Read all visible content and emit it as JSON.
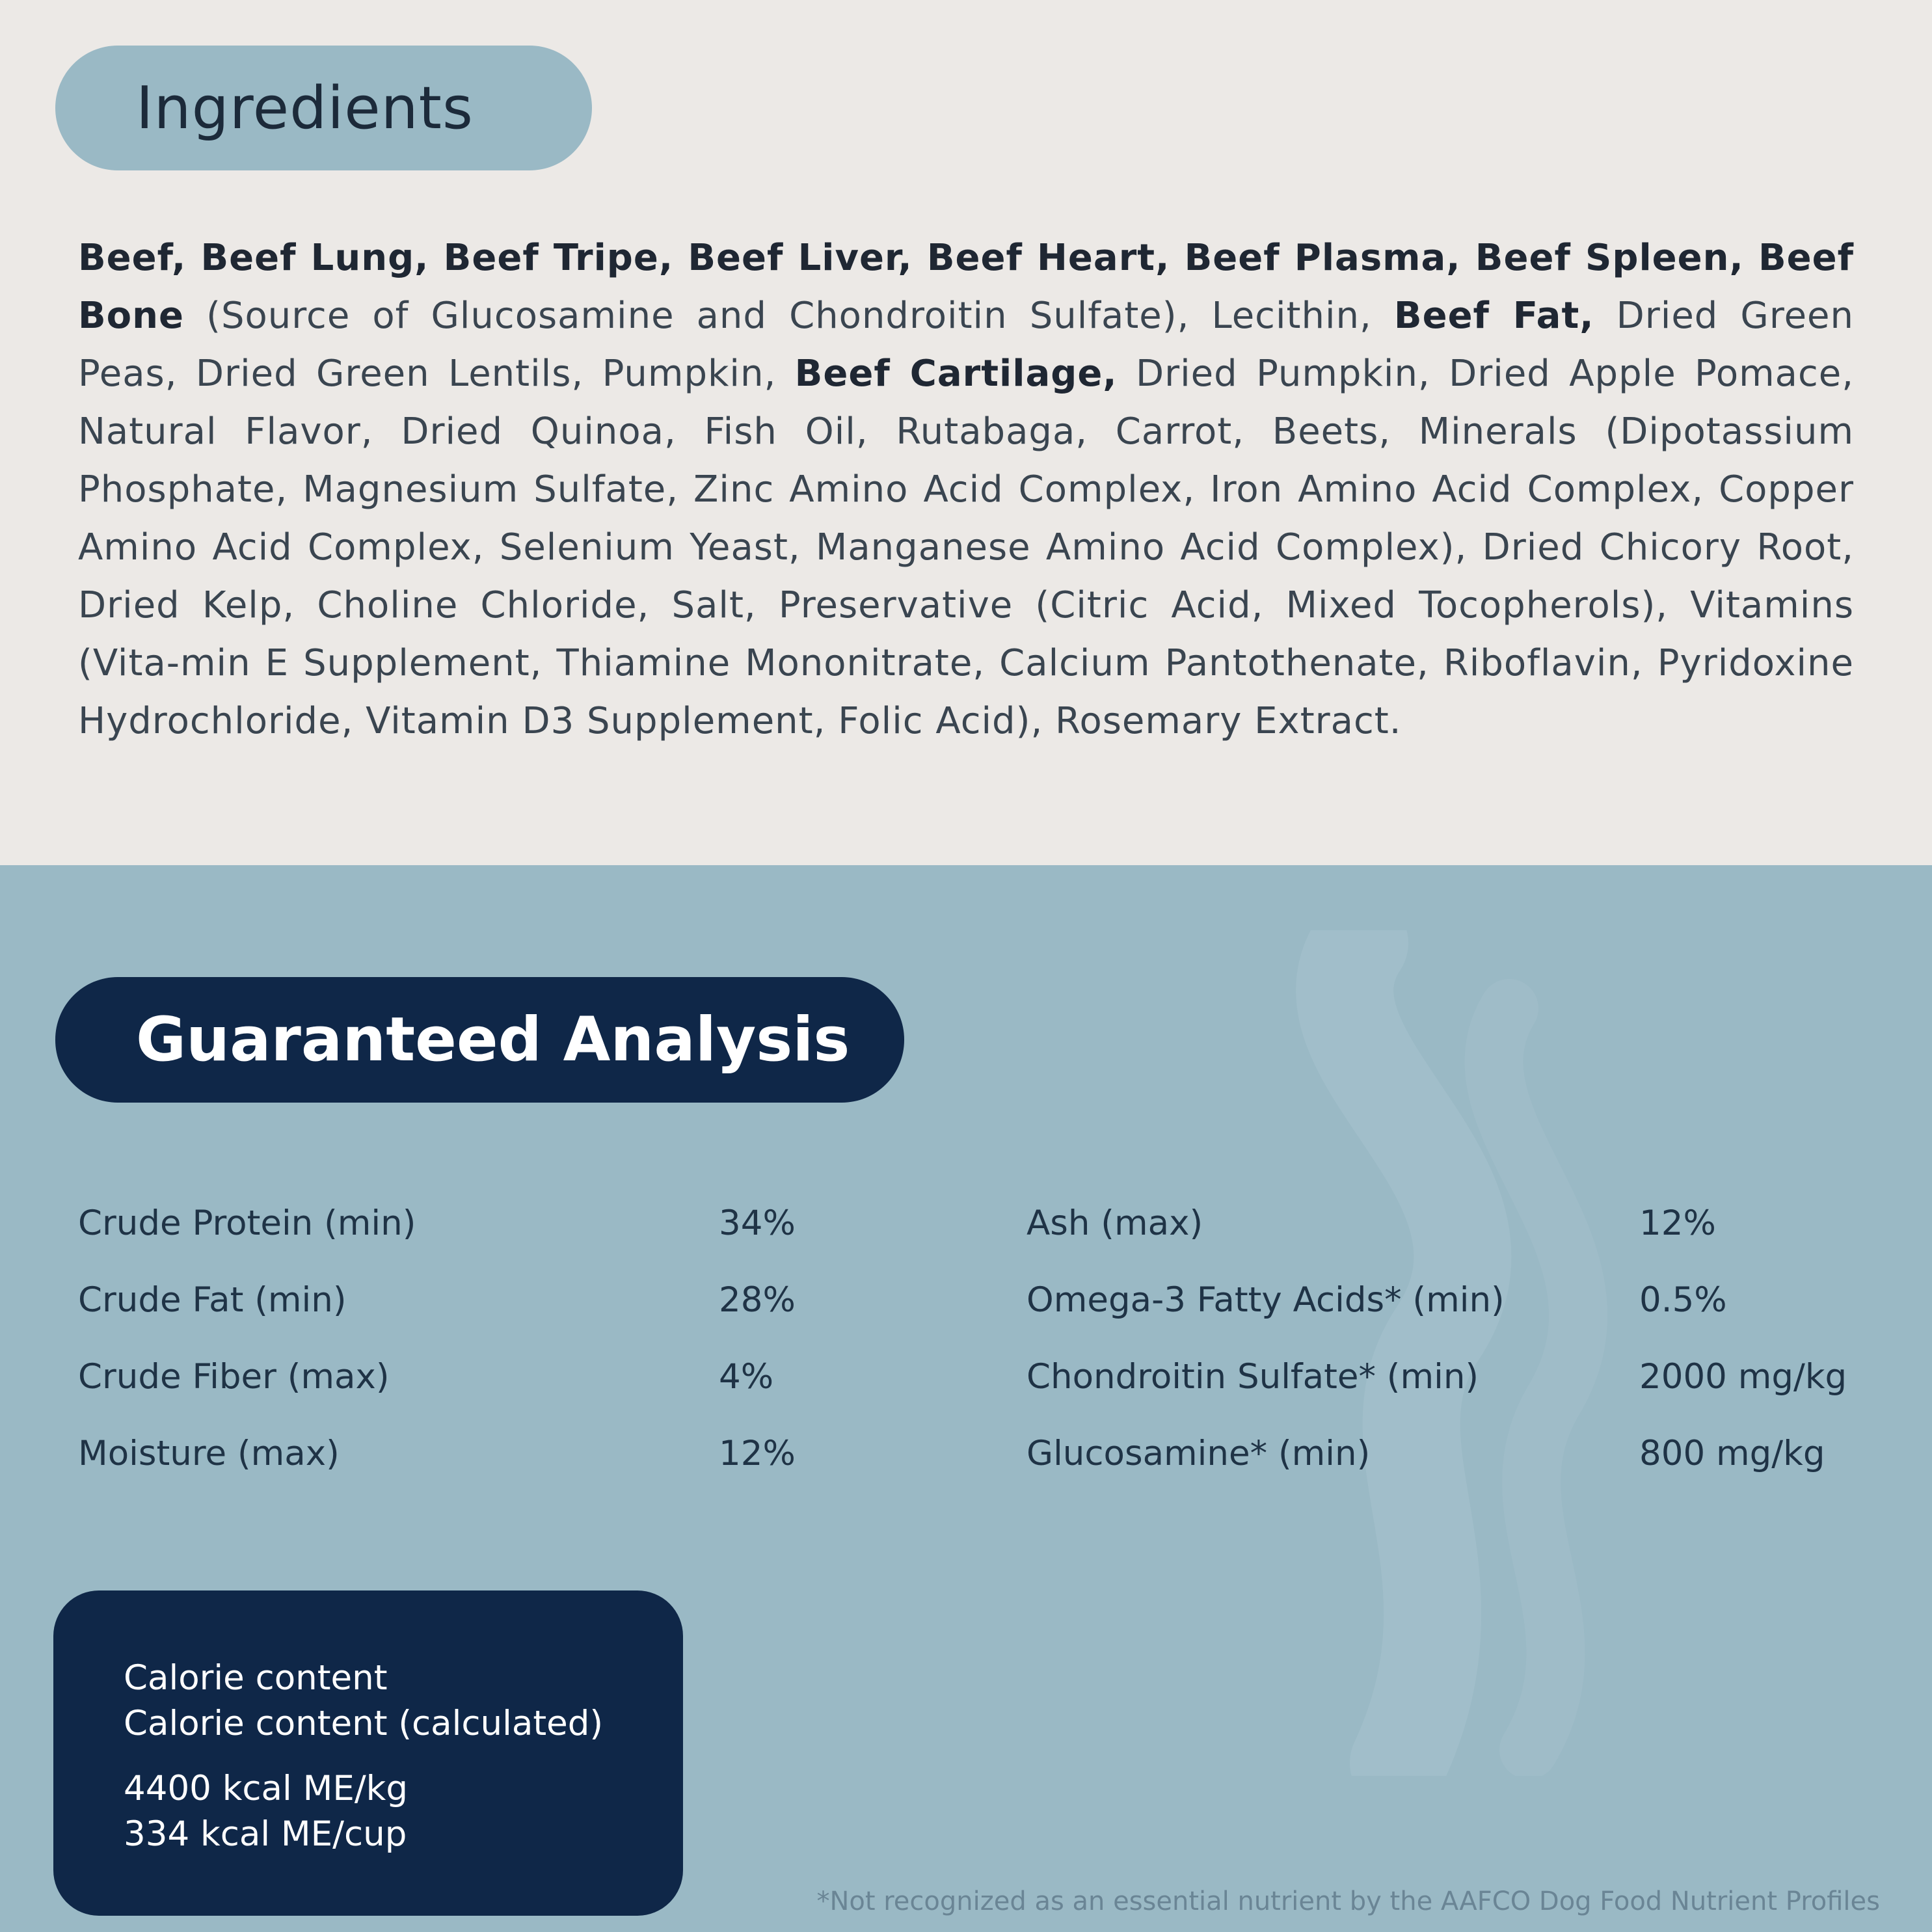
{
  "ingredients": {
    "heading": "Ingredients",
    "segments": [
      {
        "text": "Beef, Beef Lung, Beef Tripe, Beef Liver, Beef Heart, Beef Plasma, Beef Spleen, Beef Bone",
        "bold": true
      },
      {
        "text": " (Source of Glucosamine and Chondroitin Sulfate), Lecithin, ",
        "bold": false
      },
      {
        "text": "Beef Fat,",
        "bold": true
      },
      {
        "text": " Dried Green Peas, Dried Green Lentils, Pumpkin, ",
        "bold": false
      },
      {
        "text": "Beef Cartilage,",
        "bold": true
      },
      {
        "text": " Dried Pumpkin, Dried Apple Pomace, Natural Flavor, Dried Quinoa, Fish Oil, Rutabaga, Carrot, Beets, Minerals (Dipotassium Phosphate, Magnesium Sulfate, Zinc Amino Acid Complex, Iron Amino Acid Complex, Copper Amino Acid Complex, Selenium Yeast, Manganese Amino Acid Complex), Dried Chicory Root, Dried Kelp, Choline Chloride, Salt, Preservative (Citric Acid, Mixed Tocopherols), Vitamins (Vita-min E Supplement, Thiamine Mononitrate, Calcium Pantothenate, Riboflavin, Pyridoxine Hydrochloride, Vitamin D3 Supplement, Folic Acid), Rosemary Extract.",
        "bold": false
      }
    ]
  },
  "analysis": {
    "heading": "Guaranteed Analysis",
    "left": [
      {
        "label": "Crude Protein (min)",
        "value": "34%"
      },
      {
        "label": "Crude Fat (min)",
        "value": "28%"
      },
      {
        "label": "Crude Fiber (max)",
        "value": "4%"
      },
      {
        "label": "Moisture (max)",
        "value": "12%"
      }
    ],
    "right": [
      {
        "label": "Ash (max)",
        "value": "12%"
      },
      {
        "label": "Omega-3 Fatty Acids* (min)",
        "value": "0.5%"
      },
      {
        "label": "Chondroitin Sulfate* (min)",
        "value": "2000 mg/kg"
      },
      {
        "label": "Glucosamine* (min)",
        "value": "800 mg/kg"
      }
    ]
  },
  "calories": {
    "line1": "Calorie content",
    "line2": "Calorie content (calculated)",
    "line3": "4400 kcal ME/kg",
    "line4": "334 kcal ME/cup"
  },
  "footnote": "*Not recognized as an essential nutrient by the AAFCO Dog Food Nutrient Profiles",
  "colors": {
    "cream_bg": "#ece9e6",
    "blue_bg": "#9ab9c5",
    "navy": "#0f2748"
  }
}
